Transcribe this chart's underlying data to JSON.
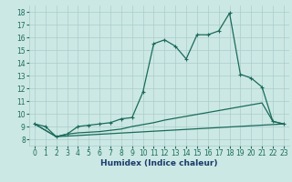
{
  "xlabel": "Humidex (Indice chaleur)",
  "xlim": [
    -0.5,
    23.5
  ],
  "ylim": [
    7.5,
    18.5
  ],
  "yticks": [
    8,
    9,
    10,
    11,
    12,
    13,
    14,
    15,
    16,
    17,
    18
  ],
  "xticks": [
    0,
    1,
    2,
    3,
    4,
    5,
    6,
    7,
    8,
    9,
    10,
    11,
    12,
    13,
    14,
    15,
    16,
    17,
    18,
    19,
    20,
    21,
    22,
    23
  ],
  "bg_color": "#cce8e4",
  "line_color": "#1a6b5a",
  "grid_color": "#aacccc",
  "line1_x": [
    0,
    1,
    2,
    3,
    4,
    5,
    6,
    7,
    8,
    9,
    10,
    11,
    12,
    13,
    14,
    15,
    16,
    17,
    18,
    19,
    20,
    21,
    22,
    23
  ],
  "line1_y": [
    9.2,
    9.0,
    8.2,
    8.4,
    9.0,
    9.1,
    9.2,
    9.3,
    9.6,
    9.7,
    11.7,
    15.5,
    15.8,
    15.3,
    14.3,
    16.2,
    16.2,
    16.5,
    17.9,
    13.1,
    12.8,
    12.1,
    9.4,
    9.2
  ],
  "line2_x": [
    0,
    2,
    3,
    4,
    5,
    6,
    7,
    8,
    9,
    10,
    11,
    12,
    13,
    14,
    15,
    16,
    17,
    18,
    19,
    20,
    21,
    22,
    23
  ],
  "line2_y": [
    9.2,
    8.2,
    8.4,
    8.5,
    8.55,
    8.6,
    8.7,
    8.8,
    9.0,
    9.15,
    9.3,
    9.5,
    9.65,
    9.8,
    9.95,
    10.1,
    10.25,
    10.4,
    10.55,
    10.7,
    10.85,
    9.4,
    9.2
  ],
  "line3_x": [
    0,
    2,
    23
  ],
  "line3_y": [
    9.2,
    8.2,
    9.2
  ],
  "markers_x": [
    0,
    1,
    2,
    3,
    4,
    5,
    6,
    7,
    8,
    9,
    10,
    11,
    12,
    13,
    14,
    15,
    16,
    17,
    18,
    19,
    20,
    21,
    22,
    23
  ],
  "markers_y": [
    9.2,
    9.0,
    8.2,
    8.4,
    9.0,
    9.1,
    9.2,
    9.3,
    9.6,
    9.7,
    11.7,
    15.5,
    15.8,
    15.3,
    14.3,
    16.2,
    16.2,
    16.5,
    17.9,
    13.1,
    12.8,
    12.1,
    9.4,
    9.2
  ],
  "xlabel_color": "#1a3a6b",
  "tick_fontsize": 5.5,
  "xlabel_fontsize": 6.5
}
